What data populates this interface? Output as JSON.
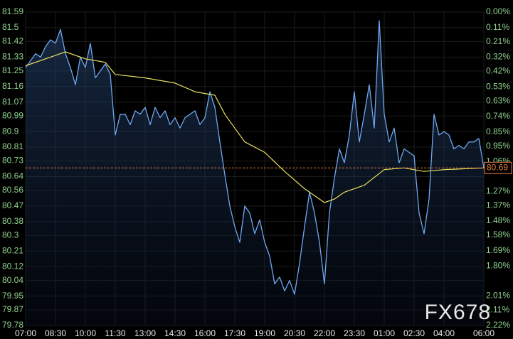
{
  "chart_data": {
    "type": "line",
    "x": [
      "07:00",
      "07:15",
      "07:30",
      "07:45",
      "08:00",
      "08:15",
      "08:30",
      "08:45",
      "09:00",
      "09:15",
      "09:30",
      "09:45",
      "10:00",
      "10:15",
      "10:30",
      "10:45",
      "11:00",
      "11:15",
      "11:30",
      "11:45",
      "12:00",
      "12:15",
      "12:30",
      "12:45",
      "13:00",
      "13:15",
      "13:30",
      "13:45",
      "14:00",
      "14:15",
      "14:30",
      "14:45",
      "15:00",
      "15:15",
      "15:30",
      "15:45",
      "16:00",
      "16:15",
      "16:30",
      "16:45",
      "17:00",
      "17:15",
      "17:30",
      "17:45",
      "18:00",
      "18:15",
      "18:30",
      "18:45",
      "19:00",
      "19:15",
      "19:30",
      "19:45",
      "20:00",
      "20:15",
      "20:30",
      "20:45",
      "21:00",
      "21:15",
      "21:30",
      "21:45",
      "22:00",
      "22:15",
      "22:30",
      "22:45",
      "23:00",
      "23:15",
      "23:30",
      "23:45",
      "00:00",
      "00:15",
      "00:30",
      "00:45",
      "01:00",
      "01:15",
      "01:30",
      "01:45",
      "02:00",
      "02:15",
      "02:30",
      "02:45",
      "03:00",
      "03:15",
      "03:30",
      "03:45",
      "04:00",
      "04:15",
      "04:30",
      "04:45",
      "05:00",
      "05:15",
      "05:30",
      "05:45",
      "06:00"
    ],
    "series": [
      {
        "color": "#6ea8f0",
        "values": [
          81.27,
          81.31,
          81.35,
          81.33,
          81.39,
          81.43,
          81.41,
          81.49,
          81.35,
          81.27,
          81.17,
          81.33,
          81.27,
          81.41,
          81.21,
          81.25,
          81.29,
          81.23,
          80.88,
          81.0,
          81.0,
          80.94,
          81.02,
          81.0,
          81.04,
          80.94,
          81.04,
          80.98,
          81.02,
          80.94,
          80.98,
          80.92,
          80.98,
          81.0,
          81.02,
          80.94,
          80.98,
          81.13,
          81.04,
          80.84,
          80.65,
          80.47,
          80.35,
          80.26,
          80.47,
          80.43,
          80.31,
          80.39,
          80.26,
          80.18,
          80.02,
          80.06,
          79.98,
          80.04,
          79.96,
          80.14,
          80.35,
          80.55,
          80.43,
          80.26,
          80.02,
          80.43,
          80.63,
          80.8,
          80.72,
          80.88,
          81.13,
          80.84,
          81.0,
          81.17,
          80.92,
          81.54,
          81.0,
          80.84,
          80.92,
          80.72,
          80.8,
          80.78,
          80.76,
          80.43,
          80.31,
          80.51,
          81.0,
          80.88,
          80.9,
          80.88,
          80.8,
          80.82,
          80.8,
          80.84,
          80.84,
          80.86,
          80.69
        ]
      },
      {
        "color": "#e8e060",
        "x": [
          "07:00",
          "08:30",
          "09:00",
          "10:00",
          "11:00",
          "11:30",
          "13:00",
          "14:30",
          "15:30",
          "16:30",
          "17:00",
          "18:00",
          "19:00",
          "20:00",
          "21:00",
          "22:00",
          "22:30",
          "23:00",
          "00:00",
          "01:00",
          "02:00",
          "03:00",
          "04:00",
          "06:00"
        ],
        "values": [
          81.28,
          81.34,
          81.36,
          81.32,
          81.3,
          81.23,
          81.21,
          81.18,
          81.13,
          81.11,
          81.0,
          80.84,
          80.78,
          80.67,
          80.57,
          80.49,
          80.51,
          80.55,
          80.59,
          80.68,
          80.69,
          80.67,
          80.68,
          80.69
        ]
      }
    ],
    "last_price": 80.69,
    "last_price_color": "#e07b39",
    "watermark": "FX678",
    "xticks": [
      "07:00",
      "08:30",
      "10:00",
      "11:30",
      "13:00",
      "14:30",
      "16:00",
      "17:30",
      "19:00",
      "20:30",
      "22:00",
      "23:30",
      "01:00",
      "02:30",
      "04:00",
      "06:00"
    ],
    "ylim": [
      79.78,
      81.59
    ],
    "yticks": [
      81.59,
      81.5,
      81.42,
      81.33,
      81.25,
      81.16,
      81.07,
      80.99,
      80.9,
      80.81,
      80.73,
      80.64,
      80.56,
      80.47,
      80.38,
      80.3,
      80.21,
      80.12,
      80.04,
      79.95,
      79.87,
      79.78
    ],
    "y2lim": [
      2.22,
      0
    ],
    "y2ticks": [
      {
        "value": 0,
        "label": "0.00%"
      },
      {
        "value": 0.11,
        "label": "0.11%"
      },
      {
        "value": 0.21,
        "label": "0.21%"
      },
      {
        "value": 0.32,
        "label": "0.32%"
      },
      {
        "value": 0.42,
        "label": "0.42%"
      },
      {
        "value": 0.53,
        "label": "0.53%"
      },
      {
        "value": 0.63,
        "label": "0.63%"
      },
      {
        "value": 0.74,
        "label": "0.74%"
      },
      {
        "value": 0.85,
        "label": "0.85%"
      },
      {
        "value": 0.95,
        "label": "0.95%"
      },
      {
        "value": 1.06,
        "label": "1.06%"
      },
      {
        "value": 1.27,
        "label": "1.27%"
      },
      {
        "value": 1.37,
        "label": "1.37%"
      },
      {
        "value": 1.48,
        "label": "1.48%"
      },
      {
        "value": 1.58,
        "label": "1.58%"
      },
      {
        "value": 1.69,
        "label": "1.69%"
      },
      {
        "value": 1.8,
        "label": "1.80%"
      },
      {
        "value": 2.01,
        "label": "2.01%"
      },
      {
        "value": 2.11,
        "label": "2.11%"
      },
      {
        "value": 2.22,
        "label": "2.22%"
      }
    ],
    "grid": true
  }
}
